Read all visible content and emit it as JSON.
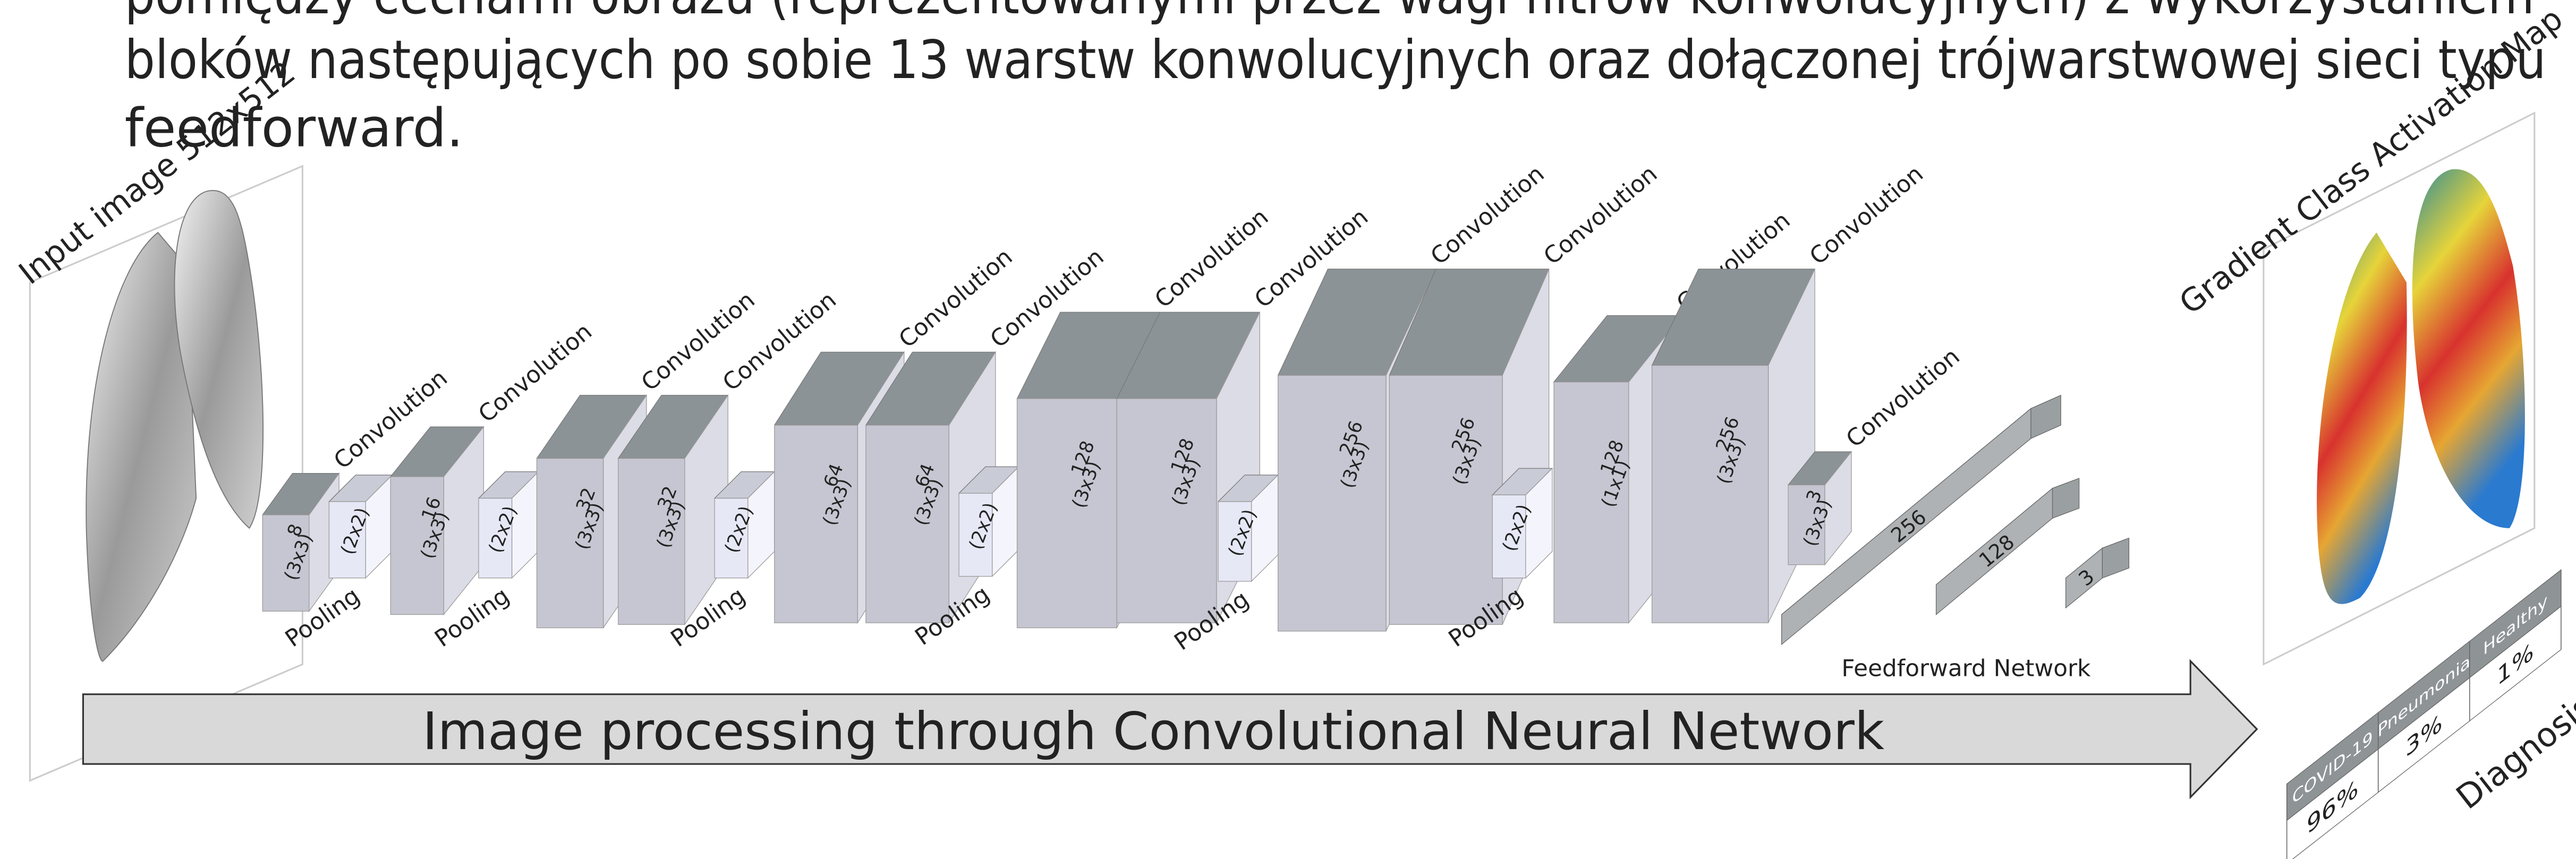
{
  "paragraph": {
    "lines": [
      "pomiędzy cechami obrazu (reprezentowanymi przez wagi filtrów konwolucyjnych) z wykorzystaniem",
      "bloków następujących po sobie 13 warstw konwolucyjnych oraz dołączonej trójwarstwowej sieci typu",
      "feedforward."
    ]
  },
  "input_label": "Input image 512x512",
  "cam_label": "Gradient Class  Activation Map",
  "layers": [
    {
      "label": "Convolution",
      "filters": "8",
      "kernel": "(3x3)"
    },
    {
      "label": "Pooling",
      "kernel": "(2x2)"
    },
    {
      "label": "Convolution",
      "filters": "16",
      "kernel": "(3x3)"
    },
    {
      "label": "Pooling",
      "kernel": "(2x2)"
    },
    {
      "label": "Convolution",
      "filters": "32",
      "kernel": "(3x3)"
    },
    {
      "label": "Convolution",
      "filters": "32",
      "kernel": "(3x3)"
    },
    {
      "label": "Pooling",
      "kernel": "(2x2)"
    },
    {
      "label": "Convolution",
      "filters": "64",
      "kernel": "(3x3)"
    },
    {
      "label": "Convolution",
      "filters": "64",
      "kernel": "(3x3)"
    },
    {
      "label": "Pooling",
      "kernel": "(2x2)"
    },
    {
      "label": "Convolution",
      "filters": "128",
      "kernel": "(3x3)"
    },
    {
      "label": "Convolution",
      "filters": "128",
      "kernel": "(3x3)"
    },
    {
      "label": "Pooling",
      "kernel": "(2x2)"
    },
    {
      "label": "Convolution",
      "filters": "256",
      "kernel": "(3x3)"
    },
    {
      "label": "Convolution",
      "filters": "256",
      "kernel": "(3x3)"
    },
    {
      "label": "Pooling",
      "kernel": "(2x2)"
    },
    {
      "label": "Convolution",
      "filters": "128",
      "kernel": "(1x1)"
    },
    {
      "label": "Convolution",
      "filters": "256",
      "kernel": "(3x3)"
    },
    {
      "label": "Convolution",
      "filters": "3",
      "kernel": "(3x3)"
    }
  ],
  "feedforward": {
    "label": "Feedforward Network",
    "layers": [
      "256",
      "128",
      "3"
    ]
  },
  "arrow_label": "Image processing through Convolutional Neural Network",
  "diagnosis": {
    "title": "Diagnosis",
    "classes": [
      {
        "name": "COVID-19",
        "value": "96%"
      },
      {
        "name": "Pneumonia",
        "value": "3%"
      },
      {
        "name": "Healthy",
        "value": "1%"
      }
    ]
  }
}
